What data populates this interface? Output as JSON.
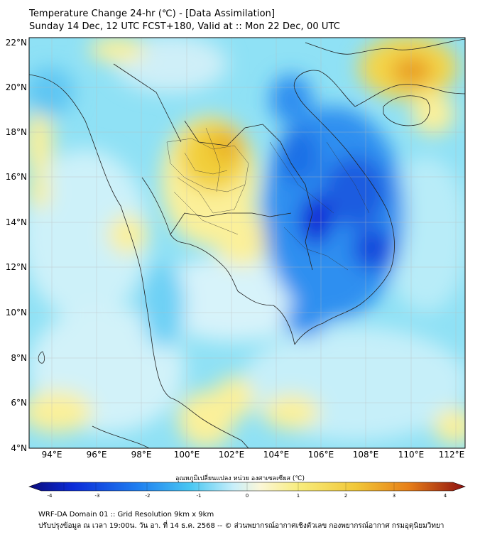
{
  "header": {
    "title_line1": "Temperature Change 24-hr (℃) - [Data Assimilation]",
    "title_line2": "Sunday 14 Dec, 12 UTC FCST+180, Valid at :: Mon 22 Dec, 00 UTC"
  },
  "map": {
    "lat_labels": [
      "22°N",
      "20°N",
      "18°N",
      "16°N",
      "14°N",
      "12°N",
      "10°N",
      "8°N",
      "6°N",
      "4°N"
    ],
    "lon_labels": [
      "94°E",
      "96°E",
      "98°E",
      "100°E",
      "102°E",
      "104°E",
      "106°E",
      "108°E",
      "110°E",
      "112°E"
    ],
    "lat_values": [
      22,
      20,
      18,
      16,
      14,
      12,
      10,
      8,
      6,
      4
    ],
    "lon_values": [
      94,
      96,
      98,
      100,
      102,
      104,
      106,
      108,
      110,
      112
    ],
    "extent": {
      "lon_min": 93.0,
      "lon_max": 112.4,
      "lat_min": 4.0,
      "lat_max": 22.2
    },
    "colors": {
      "strong_cooling": "#0a1fd6",
      "cooling": "#2f8ff0",
      "slight_cooling": "#5fd0f5",
      "neutral": "#e6f7fb",
      "slight_warming": "#fbf09a",
      "warming": "#f2cf3a",
      "strong_warming": "#e8a01c"
    }
  },
  "colorbar": {
    "title": "อุณหภูมิเปลี่ยนแปลง หน่วย องศาเซลเซียส (℃)",
    "ticks": [
      "-4",
      "-3",
      "-2",
      "-1",
      "0",
      "1",
      "2",
      "3",
      "4"
    ],
    "min": -4,
    "max": 4
  },
  "footer": {
    "line1": "WRF-DA Domain 01 :: Grid Resolution 9km x 9km",
    "line2": "ปรับปรุงข้อมูล ณ เวลา 19:00น. วัน อา. ที่ 14 ธ.ค. 2568 -- © ส่วนพยากรณ์อากาศเชิงตัวเลข กองพยากรณ์อากาศ กรมอุตุนิยมวิทยา"
  }
}
